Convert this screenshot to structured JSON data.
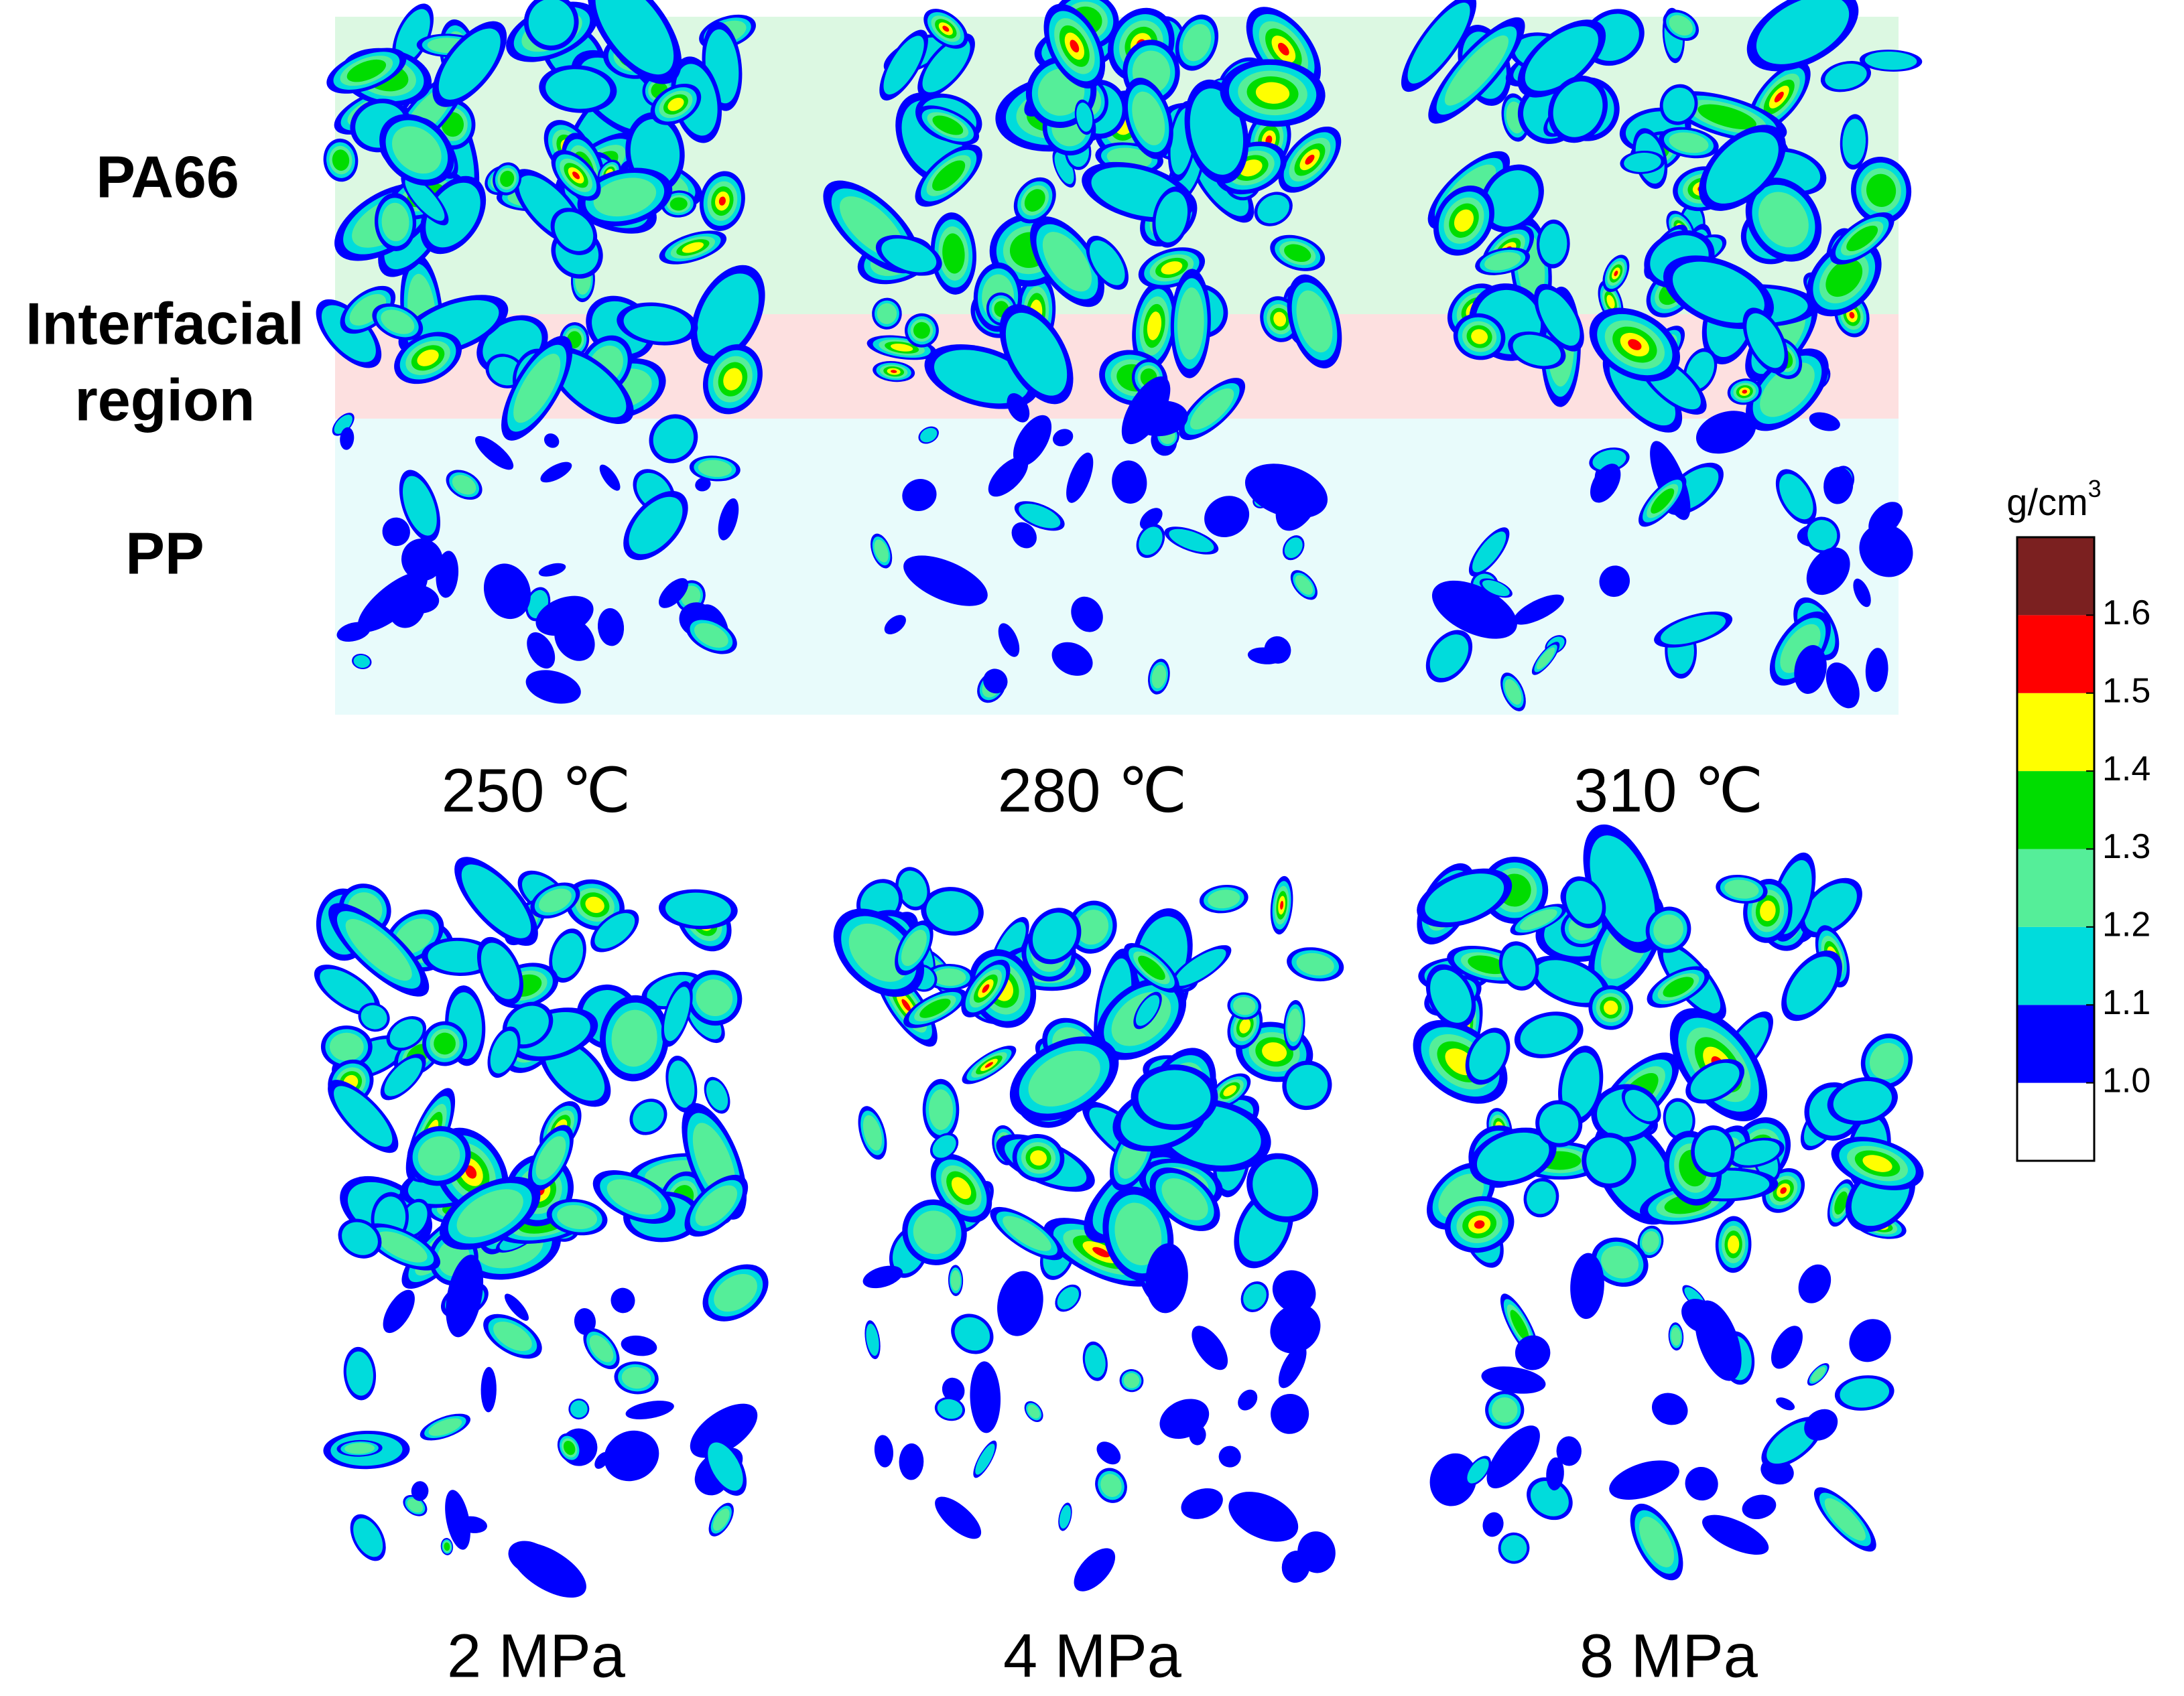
{
  "region_labels": {
    "pa66": "PA66",
    "interfacial": [
      "Interfacial",
      "region"
    ],
    "pp": "PP"
  },
  "top_captions": [
    "250 ℃",
    "280 ℃",
    "310 ℃"
  ],
  "bottom_captions": [
    "2 MPa",
    "4 MPa",
    "8 MPa"
  ],
  "colorbar": {
    "unit": "g/cm",
    "unit_exp": "3",
    "lim": [
      0.9,
      1.7
    ],
    "ticks": [
      {
        "value": 1.0,
        "label": "1.0"
      },
      1.1,
      1.2,
      1.3,
      1.4,
      1.5,
      1.6
    ],
    "colors": [
      "#ffffff",
      "#0000ff",
      "#00dcdc",
      "#55ee99",
      "#00dd00",
      "#ffff00",
      "#ff0000",
      "#7b2020"
    ]
  }
}
